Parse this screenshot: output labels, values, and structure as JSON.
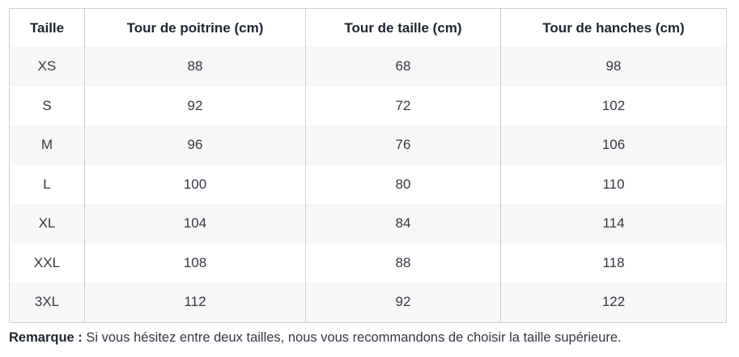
{
  "size_chart": {
    "columns": [
      "Taille",
      "Tour de poitrine (cm)",
      "Tour de taille (cm)",
      "Tour de hanches (cm)"
    ],
    "rows": [
      [
        "XS",
        "88",
        "68",
        "98"
      ],
      [
        "S",
        "92",
        "72",
        "102"
      ],
      [
        "M",
        "96",
        "76",
        "106"
      ],
      [
        "L",
        "100",
        "80",
        "110"
      ],
      [
        "XL",
        "104",
        "84",
        "114"
      ],
      [
        "XXL",
        "108",
        "88",
        "118"
      ],
      [
        "3XL",
        "112",
        "92",
        "122"
      ]
    ],
    "colors": {
      "stripe": "#f7f7f7",
      "border": "#d1d1d1",
      "header_text": "#1e2532",
      "body_text": "#323844"
    }
  },
  "note": {
    "label": "Remarque :",
    "text": "Si vous hésitez entre deux tailles, nous vous recommandons de choisir la taille supérieure."
  }
}
